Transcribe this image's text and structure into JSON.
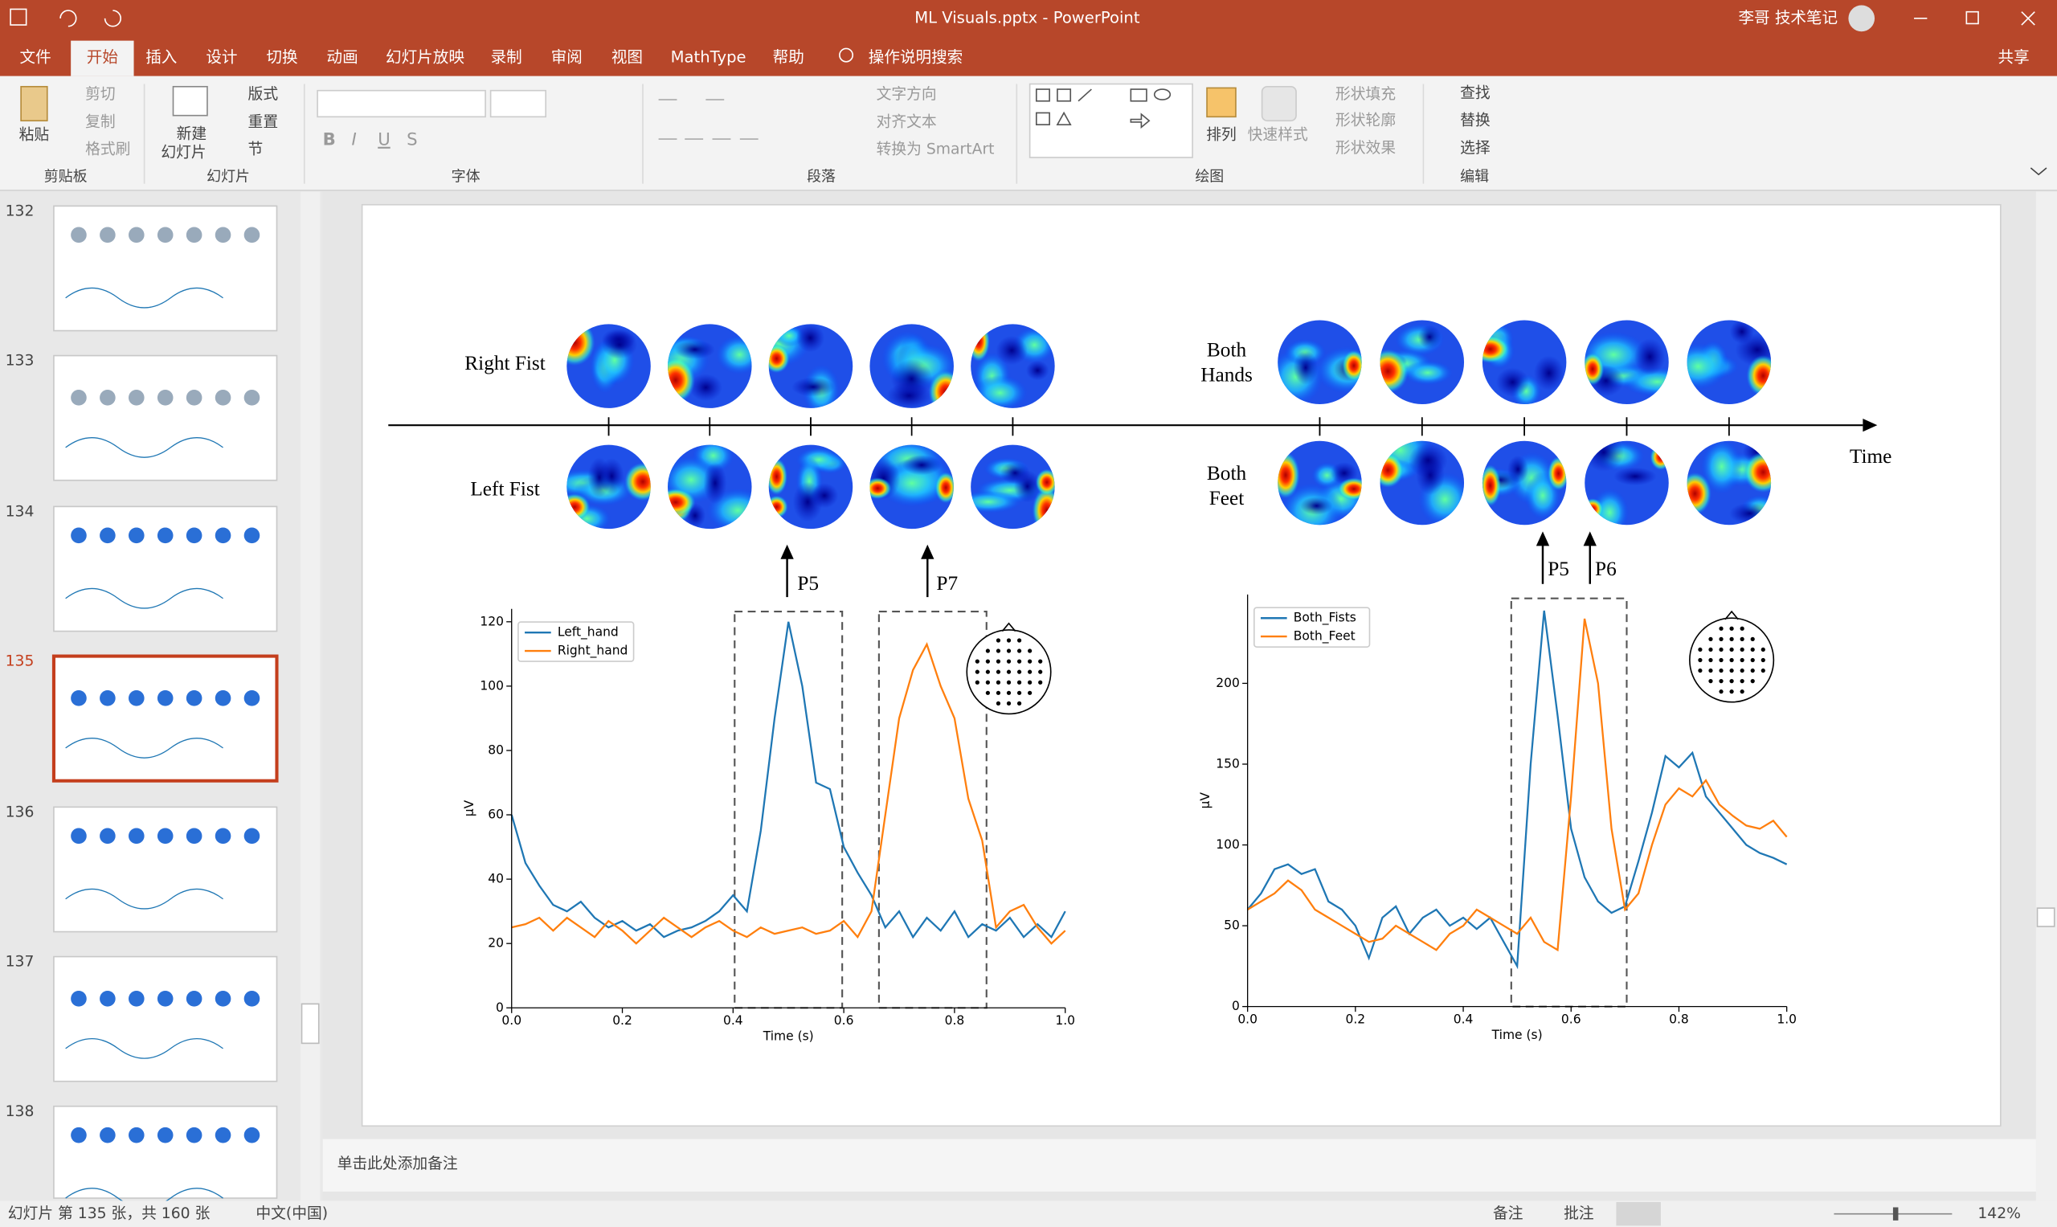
{
  "title_bar": {
    "document_title": "ML Visuals.pptx - PowerPoint",
    "user": "李哥 技术笔记"
  },
  "tabs": [
    "文件",
    "开始",
    "插入",
    "设计",
    "切换",
    "动画",
    "幻灯片放映",
    "录制",
    "审阅",
    "视图",
    "MathType",
    "帮助"
  ],
  "active_tab": "开始",
  "search": "操作说明搜索",
  "share": "共享",
  "ribbon": {
    "clipboard": {
      "label": "剪贴板",
      "paste": "粘贴",
      "cut": "剪切",
      "copy": "复制",
      "format_painter": "格式刷"
    },
    "slides": {
      "label": "幻灯片",
      "new_slide": [
        "新建",
        "幻灯片"
      ],
      "layout": "版式",
      "reset": "重置",
      "section": "节"
    },
    "font": {
      "label": "字体"
    },
    "paragraph": {
      "label": "段落",
      "text_direction": "文字方向",
      "align_text": "对齐文本",
      "smartart": "转换为 SmartArt"
    },
    "drawing": {
      "label": "绘图",
      "arrange": "排列",
      "quick_styles": "快速样式",
      "shape_fill": "形状填充",
      "shape_outline": "形状轮廓",
      "shape_effects": "形状效果"
    },
    "editing": {
      "label": "编辑",
      "find": "查找",
      "replace": "替换",
      "select": "选择"
    }
  },
  "thumbnails": [
    "132",
    "133",
    "134",
    "135",
    "136",
    "137",
    "138"
  ],
  "selected_thumbnail": "135",
  "notes_placeholder": "单击此处添加备注",
  "status_bar": {
    "slide_info": "幻灯片 第 135 张，共 160 张",
    "language": "中文(中国)",
    "notes": "备注",
    "comments": "批注",
    "zoom": "142%"
  },
  "slide": {
    "left_rows": [
      "Right Fist",
      "Left Fist"
    ],
    "right_rows": [
      [
        "Both",
        "Hands"
      ],
      [
        "Both",
        "Feet"
      ]
    ],
    "time_label": "Time",
    "peak_labels": [
      "P5",
      "P7",
      "P5",
      "P6"
    ],
    "charts": [
      {
        "type": "line",
        "xlabel": "Time (s)",
        "ylabel": "μV",
        "legend": "upper left",
        "xlim": [
          0,
          1
        ],
        "ylim": [
          0,
          124
        ],
        "xticks": [
          {
            "value": 0,
            "label": "0.0"
          },
          0.2,
          0.4,
          0.6,
          0.8,
          {
            "value": 1,
            "label": "1.0"
          }
        ],
        "yticks": [
          0,
          20,
          40,
          60,
          80,
          100,
          120
        ],
        "x": [
          0,
          0.025,
          0.05,
          0.075,
          0.1,
          0.125,
          0.15,
          0.175,
          0.2,
          0.225,
          0.25,
          0.275,
          0.3,
          0.325,
          0.35,
          0.375,
          0.4,
          0.425,
          0.45,
          0.475,
          0.5,
          0.525,
          0.55,
          0.575,
          0.6,
          0.625,
          0.65,
          0.675,
          0.7,
          0.725,
          0.75,
          0.775,
          0.8,
          0.825,
          0.85,
          0.875,
          0.9,
          0.925,
          0.95,
          0.975,
          1
        ],
        "series": [
          {
            "name": "Left_hand",
            "color": "#1f77b4",
            "values": [
              60,
              45,
              38,
              32,
              30,
              33,
              28,
              25,
              27,
              24,
              26,
              22,
              24,
              25,
              27,
              30,
              35,
              30,
              55,
              90,
              120,
              100,
              70,
              68,
              50,
              42,
              35,
              25,
              30,
              22,
              28,
              24,
              30,
              22,
              26,
              24,
              28,
              22,
              26,
              22,
              30
            ]
          },
          {
            "name": "Right_hand",
            "color": "#ff7f0e",
            "values": [
              25,
              26,
              28,
              24,
              28,
              25,
              22,
              27,
              24,
              20,
              24,
              28,
              25,
              22,
              25,
              27,
              24,
              22,
              25,
              23,
              24,
              25,
              23,
              24,
              27,
              22,
              30,
              60,
              90,
              105,
              113,
              100,
              90,
              65,
              52,
              25,
              30,
              32,
              25,
              20,
              24
            ]
          }
        ]
      },
      {
        "type": "line",
        "xlabel": "Time (s)",
        "ylabel": "μV",
        "legend": "upper left",
        "xlim": [
          0,
          1
        ],
        "ylim": [
          0,
          255
        ],
        "xticks": [
          {
            "value": 0,
            "label": "0.0"
          },
          0.2,
          0.4,
          0.6,
          0.8,
          {
            "value": 1,
            "label": "1.0"
          }
        ],
        "yticks": [
          0,
          50,
          100,
          150,
          200
        ],
        "x": [
          0,
          0.025,
          0.05,
          0.075,
          0.1,
          0.125,
          0.15,
          0.175,
          0.2,
          0.225,
          0.25,
          0.275,
          0.3,
          0.325,
          0.35,
          0.375,
          0.4,
          0.425,
          0.45,
          0.475,
          0.5,
          0.525,
          0.55,
          0.575,
          0.6,
          0.625,
          0.65,
          0.675,
          0.7,
          0.725,
          0.75,
          0.775,
          0.8,
          0.825,
          0.85,
          0.875,
          0.9,
          0.925,
          0.95,
          0.975,
          1
        ],
        "series": [
          {
            "name": "Both_Fists",
            "color": "#1f77b4",
            "values": [
              60,
              70,
              85,
              88,
              82,
              85,
              65,
              60,
              50,
              30,
              55,
              62,
              45,
              55,
              60,
              50,
              55,
              48,
              55,
              40,
              25,
              150,
              245,
              180,
              110,
              80,
              65,
              58,
              62,
              90,
              120,
              155,
              148,
              157,
              130,
              120,
              110,
              100,
              95,
              92,
              88
            ]
          },
          {
            "name": "Both_Feet",
            "color": "#ff7f0e",
            "values": [
              60,
              65,
              70,
              78,
              72,
              60,
              55,
              50,
              45,
              40,
              42,
              50,
              45,
              40,
              35,
              45,
              50,
              60,
              55,
              50,
              45,
              55,
              40,
              35,
              130,
              240,
              200,
              110,
              60,
              70,
              100,
              125,
              135,
              130,
              140,
              125,
              118,
              112,
              110,
              115,
              105
            ]
          }
        ]
      }
    ]
  }
}
